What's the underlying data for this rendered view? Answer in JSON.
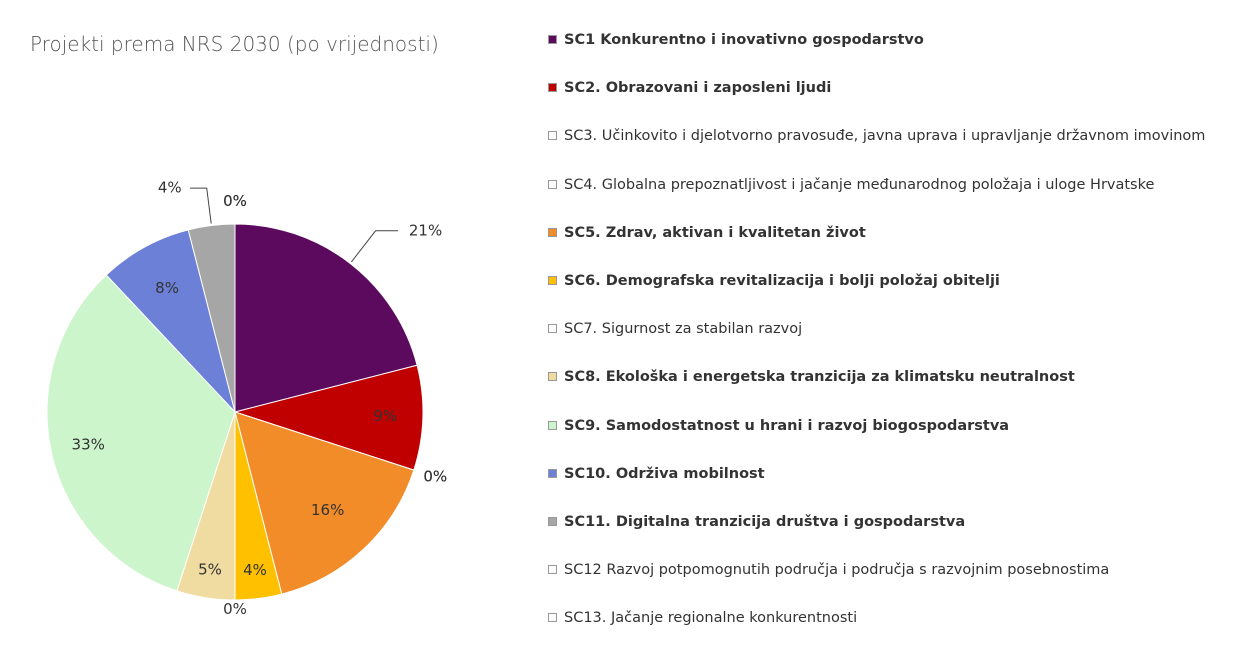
{
  "chart_data": {
    "type": "pie",
    "title": "Projekti prema NRS 2030 (po vrijednosti)",
    "categories": [
      "SC1 Konkurentno i inovativno gospodarstvo",
      "SC2. Obrazovani i zaposleni ljudi",
      "SC3. Učinkovito i djelotvorno pravosuđe, javna uprava i upravljanje državnom imovinom",
      "SC4. Globalna prepoznatljivost i jačanje međunarodnog položaja i uloge Hrvatske",
      "SC5. Zdrav, aktivan i kvalitetan život",
      "SC6. Demografska revitalizacija i bolji položaj obitelji",
      "SC7. Sigurnost za stabilan razvoj",
      "SC8. Ekološka i energetska tranzicija za klimatsku neutralnost",
      "SC9. Samodostatnost u hrani i razvoj biogospodarstva",
      "SC10. Održiva mobilnost",
      "SC11. Digitalna tranzicija društva i gospodarstva",
      "SC12 Razvoj potpomognutih područja i područja s razvojnim posebnostima",
      "SC13. Jačanje regionalne konkurentnosti"
    ],
    "values": [
      21,
      9,
      0,
      0,
      16,
      4,
      0,
      5,
      33,
      8,
      4,
      0,
      0
    ],
    "value_labels": [
      "21%",
      "9%",
      "0%",
      "0%",
      "16%",
      "4%",
      "0%",
      "5%",
      "33%",
      "8%",
      "4%",
      "0%",
      "0%"
    ],
    "colors": [
      "#5c0a5e",
      "#c00000",
      "#ffffff",
      "#ffffff",
      "#f28c28",
      "#ffc000",
      "#ffffff",
      "#f0dca0",
      "#ccf5cc",
      "#6b80d6",
      "#a6a6a6",
      "#ffffff",
      "#ffffff"
    ]
  }
}
